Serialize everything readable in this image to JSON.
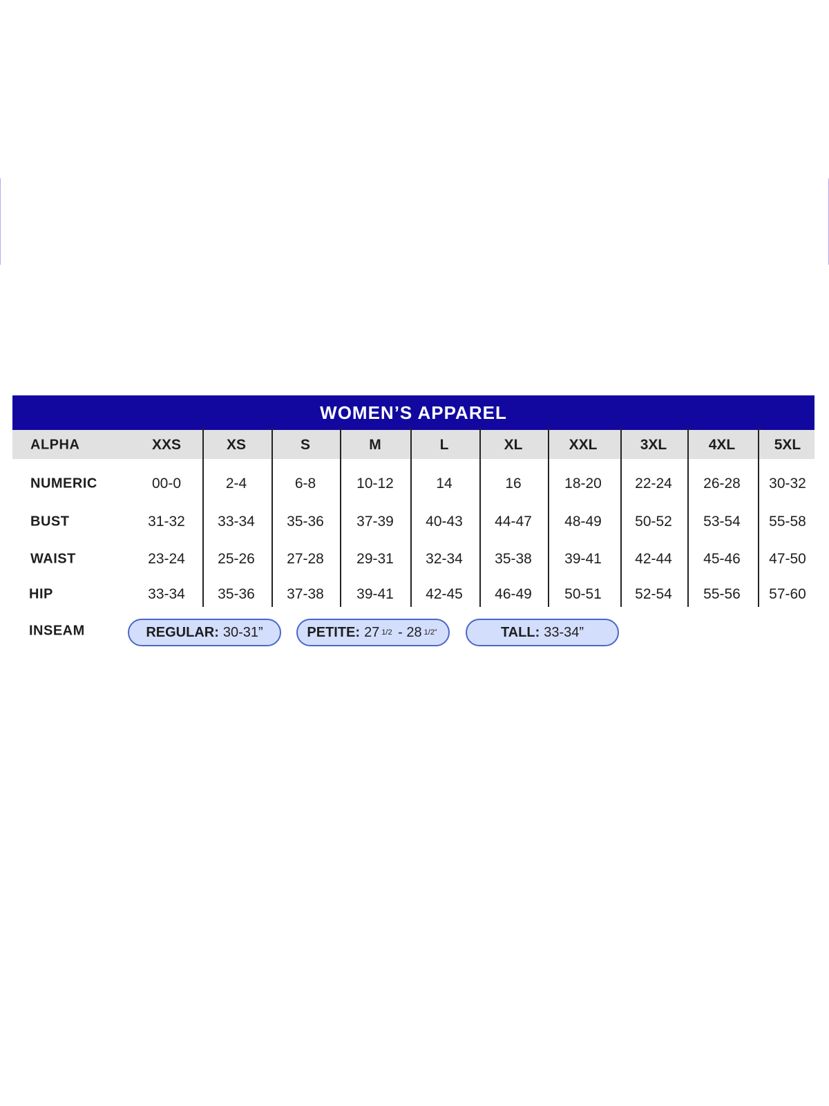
{
  "title": "WOMEN’S APPAREL",
  "colors": {
    "banner": "#1208a0",
    "header_row": "#e1e1e1",
    "pill_fill": "#d3defc",
    "pill_border": "#4a67c8"
  },
  "header": {
    "label": "ALPHA",
    "sizes": [
      "XXS",
      "XS",
      "S",
      "M",
      "L",
      "XL",
      "XXL",
      "3XL",
      "4XL",
      "5XL"
    ]
  },
  "rows": [
    {
      "label": "NUMERIC",
      "values": [
        "00-0",
        "2-4",
        "6-8",
        "10-12",
        "14",
        "16",
        "18-20",
        "22-24",
        "26-28",
        "30-32"
      ]
    },
    {
      "label": "BUST",
      "values": [
        "31-32",
        "33-34",
        "35-36",
        "37-39",
        "40-43",
        "44-47",
        "48-49",
        "50-52",
        "53-54",
        "55-58"
      ]
    },
    {
      "label": "WAIST",
      "values": [
        "23-24",
        "25-26",
        "27-28",
        "29-31",
        "32-34",
        "35-38",
        "39-41",
        "42-44",
        "45-46",
        "47-50"
      ]
    },
    {
      "label": "HIP",
      "values": [
        "33-34",
        "35-36",
        "37-38",
        "39-41",
        "42-45",
        "46-49",
        "50-51",
        "52-54",
        "55-56",
        "57-60"
      ]
    }
  ],
  "inseam": {
    "label": "INSEAM",
    "regular": {
      "name": "REGULAR:",
      "value": "30-31”"
    },
    "petite": {
      "name": "PETITE:",
      "a": "27",
      "a_frac": "1/2",
      "sep": " - 28",
      "b_frac": "1/2”"
    },
    "tall": {
      "name": "TALL:",
      "value": "33-34”"
    }
  }
}
